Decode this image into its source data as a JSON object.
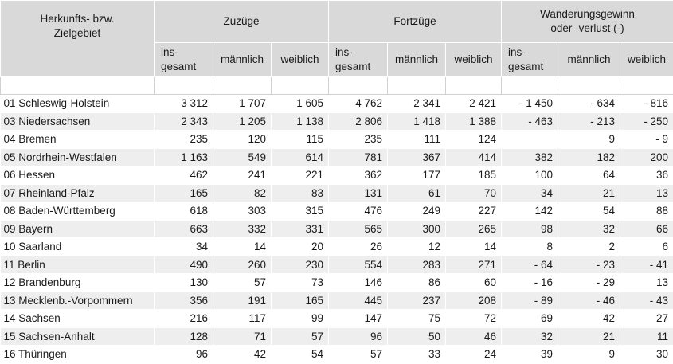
{
  "header": {
    "region": "Herkunfts- bzw.\nZielgebiet",
    "zuzuege": "Zuzüge",
    "fortzuege": "Fortzüge",
    "gewinn": "Wanderungsgewinn\noder -verlust (-)",
    "sub_total": "ins-\ngesamt",
    "sub_male": "männlich",
    "sub_female": "weiblich"
  },
  "rows": [
    [
      "01 Schleswig-Holstein",
      "3 312",
      "1 707",
      "1 605",
      "4 762",
      "2 341",
      "2 421",
      "- 1 450",
      "- 634",
      "- 816"
    ],
    [
      "03 Niedersachsen",
      "2 343",
      "1 205",
      "1 138",
      "2 806",
      "1 418",
      "1 388",
      "- 463",
      "- 213",
      "- 250"
    ],
    [
      "04 Bremen",
      "235",
      "120",
      "115",
      "235",
      "111",
      "124",
      "",
      "9",
      "- 9"
    ],
    [
      "05 Nordrhein-Westfalen",
      "1 163",
      "549",
      "614",
      "781",
      "367",
      "414",
      "382",
      "182",
      "200"
    ],
    [
      "06 Hessen",
      "462",
      "241",
      "221",
      "362",
      "177",
      "185",
      "100",
      "64",
      "36"
    ],
    [
      "07 Rheinland-Pfalz",
      "165",
      "82",
      "83",
      "131",
      "61",
      "70",
      "34",
      "21",
      "13"
    ],
    [
      "08 Baden-Württemberg",
      "618",
      "303",
      "315",
      "476",
      "249",
      "227",
      "142",
      "54",
      "88"
    ],
    [
      "09 Bayern",
      "663",
      "332",
      "331",
      "565",
      "300",
      "265",
      "98",
      "32",
      "66"
    ],
    [
      "10 Saarland",
      "34",
      "14",
      "20",
      "26",
      "12",
      "14",
      "8",
      "2",
      "6"
    ],
    [
      "11 Berlin",
      "490",
      "260",
      "230",
      "554",
      "283",
      "271",
      "- 64",
      "- 23",
      "- 41"
    ],
    [
      "12 Brandenburg",
      "130",
      "57",
      "73",
      "146",
      "86",
      "60",
      "- 16",
      "- 29",
      "13"
    ],
    [
      "13 Mecklenb.-Vorpommern",
      "356",
      "191",
      "165",
      "445",
      "237",
      "208",
      "- 89",
      "- 46",
      "- 43"
    ],
    [
      "14 Sachsen",
      "216",
      "117",
      "99",
      "147",
      "75",
      "72",
      "69",
      "42",
      "27"
    ],
    [
      "15 Sachsen-Anhalt",
      "128",
      "71",
      "57",
      "96",
      "50",
      "46",
      "32",
      "21",
      "11"
    ],
    [
      "16 Thüringen",
      "96",
      "42",
      "54",
      "57",
      "33",
      "24",
      "39",
      "9",
      "30"
    ]
  ]
}
